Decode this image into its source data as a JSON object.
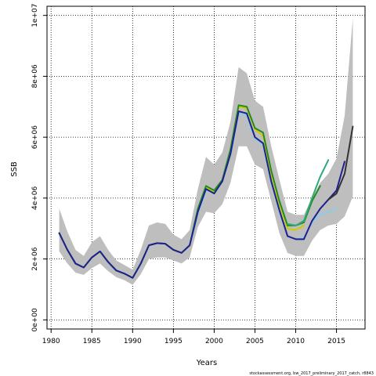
{
  "chart_data": {
    "type": "line",
    "title": "",
    "xlabel": "Years",
    "ylabel": "SSB",
    "credit": "stockassessment.org, bw_2017_preliminary_2017_catch, r8843",
    "xlim": [
      1979.5,
      2018.5
    ],
    "ylim": [
      -300000,
      10300000
    ],
    "x_ticks": [
      1980,
      1985,
      1990,
      1995,
      2000,
      2005,
      2010,
      2015
    ],
    "x_tick_labels": [
      "1980",
      "1985",
      "1990",
      "1995",
      "2000",
      "2005",
      "2010",
      "2015"
    ],
    "y_ticks": [
      0,
      2000000,
      4000000,
      6000000,
      8000000,
      10000000
    ],
    "y_tick_labels": [
      "0e+00",
      "2e+06",
      "4e+06",
      "6e+06",
      "8e+06",
      "1e+07"
    ],
    "grid": true,
    "band_color": "#bebebe",
    "confidence_band": {
      "x": [
        1981,
        1982,
        1983,
        1984,
        1985,
        1986,
        1987,
        1988,
        1989,
        1990,
        1991,
        1992,
        1993,
        1994,
        1995,
        1996,
        1997,
        1998,
        1999,
        2000,
        2001,
        2002,
        2003,
        2004,
        2005,
        2006,
        2007,
        2008,
        2009,
        2010,
        2011,
        2012,
        2013,
        2014,
        2015,
        2016,
        2017
      ],
      "lower": [
        2250000,
        1850000,
        1550000,
        1480000,
        1700000,
        1850000,
        1600000,
        1400000,
        1300000,
        1150000,
        1500000,
        2000000,
        2050000,
        2050000,
        1950000,
        1850000,
        2050000,
        3050000,
        3550000,
        3500000,
        3800000,
        4500000,
        5700000,
        5700000,
        5100000,
        4950000,
        3900000,
        2850000,
        2200000,
        2100000,
        2100000,
        2600000,
        2950000,
        3100000,
        3150000,
        3400000,
        4050000
      ],
      "upper": [
        3650000,
        2900000,
        2300000,
        2100000,
        2550000,
        2750000,
        2300000,
        1950000,
        1800000,
        1650000,
        2300000,
        3100000,
        3200000,
        3150000,
        2800000,
        2650000,
        2950000,
        4300000,
        5350000,
        5100000,
        5500000,
        6500000,
        8300000,
        8100000,
        7200000,
        7000000,
        5700000,
        4600000,
        3550000,
        3450000,
        3450000,
        4000000,
        4500000,
        4800000,
        5300000,
        6700000,
        9900000
      ]
    },
    "series": [
      {
        "color": "#cccc00",
        "x": [
          1981,
          1982,
          1983,
          1984,
          1985,
          1986,
          1987,
          1988,
          1989,
          1990,
          1991,
          1992,
          1993,
          1994,
          1995,
          1996,
          1997,
          1998,
          1999,
          2000,
          2001,
          2002,
          2003,
          2004,
          2005,
          2006,
          2007,
          2008,
          2009,
          2010,
          2011
        ],
        "values": [
          2850000,
          2300000,
          1850000,
          1720000,
          2050000,
          2250000,
          1900000,
          1620000,
          1520000,
          1380000,
          1850000,
          2450000,
          2520000,
          2500000,
          2300000,
          2200000,
          2450000,
          3600000,
          4350000,
          4200000,
          4550000,
          5500000,
          7000000,
          6950000,
          6250000,
          6050000,
          4800000,
          3800000,
          3000000,
          2950000,
          3100000
        ]
      },
      {
        "color": "#87ceeb",
        "x": [
          1981,
          1982,
          1983,
          1984,
          1985,
          1986,
          1987,
          1988,
          1989,
          1990,
          1991,
          1992,
          1993,
          1994,
          1995,
          1996,
          1997,
          1998,
          1999,
          2000,
          2001,
          2002,
          2003,
          2004,
          2005,
          2006,
          2007,
          2008,
          2009,
          2010,
          2011,
          2012,
          2013,
          2014,
          2015
        ],
        "values": [
          2850000,
          2300000,
          1850000,
          1720000,
          2050000,
          2250000,
          1900000,
          1620000,
          1520000,
          1380000,
          1850000,
          2450000,
          2520000,
          2500000,
          2300000,
          2200000,
          2450000,
          3500000,
          4250000,
          4150000,
          4550000,
          5450000,
          6800000,
          6700000,
          5950000,
          5750000,
          4500000,
          3550000,
          2750000,
          2650000,
          2700000,
          3200000,
          3450000,
          3550000,
          3650000
        ]
      },
      {
        "color": "#228b22",
        "x": [
          1981,
          1982,
          1983,
          1984,
          1985,
          1986,
          1987,
          1988,
          1989,
          1990,
          1991,
          1992,
          1993,
          1994,
          1995,
          1996,
          1997,
          1998,
          1999,
          2000,
          2001,
          2002,
          2003,
          2004,
          2005,
          2006,
          2007,
          2008,
          2009,
          2010,
          2011,
          2012,
          2013
        ],
        "values": [
          2850000,
          2300000,
          1850000,
          1720000,
          2050000,
          2250000,
          1900000,
          1620000,
          1520000,
          1380000,
          1850000,
          2450000,
          2520000,
          2500000,
          2300000,
          2200000,
          2450000,
          3650000,
          4400000,
          4250000,
          4600000,
          5600000,
          7050000,
          7000000,
          6300000,
          6150000,
          4900000,
          3900000,
          3100000,
          3100000,
          3200000,
          3900000,
          4400000
        ]
      },
      {
        "color": "#2eaa7a",
        "x": [
          2009,
          2010,
          2011,
          2012,
          2013,
          2014
        ],
        "values": [
          3150000,
          3100000,
          3250000,
          4000000,
          4700000,
          5250000
        ]
      },
      {
        "color": "#1f1f8f",
        "x": [
          1981,
          1982,
          1983,
          1984,
          1985,
          1986,
          1987,
          1988,
          1989,
          1990,
          1991,
          1992,
          1993,
          1994,
          1995,
          1996,
          1997,
          1998,
          1999,
          2000,
          2001,
          2002,
          2003,
          2004,
          2005,
          2006,
          2007,
          2008,
          2009,
          2010,
          2011,
          2012,
          2013,
          2014,
          2015,
          2016
        ],
        "values": [
          2850000,
          2300000,
          1850000,
          1720000,
          2050000,
          2250000,
          1900000,
          1620000,
          1520000,
          1380000,
          1850000,
          2450000,
          2520000,
          2500000,
          2300000,
          2200000,
          2450000,
          3550000,
          4300000,
          4150000,
          4550000,
          5450000,
          6850000,
          6780000,
          6000000,
          5800000,
          4550000,
          3600000,
          2750000,
          2650000,
          2650000,
          3250000,
          3650000,
          3950000,
          4250000,
          5200000
        ]
      },
      {
        "color": "#333333",
        "x": [
          2014,
          2015,
          2016,
          2017
        ],
        "values": [
          3950000,
          4150000,
          4800000,
          6350000
        ]
      }
    ]
  }
}
